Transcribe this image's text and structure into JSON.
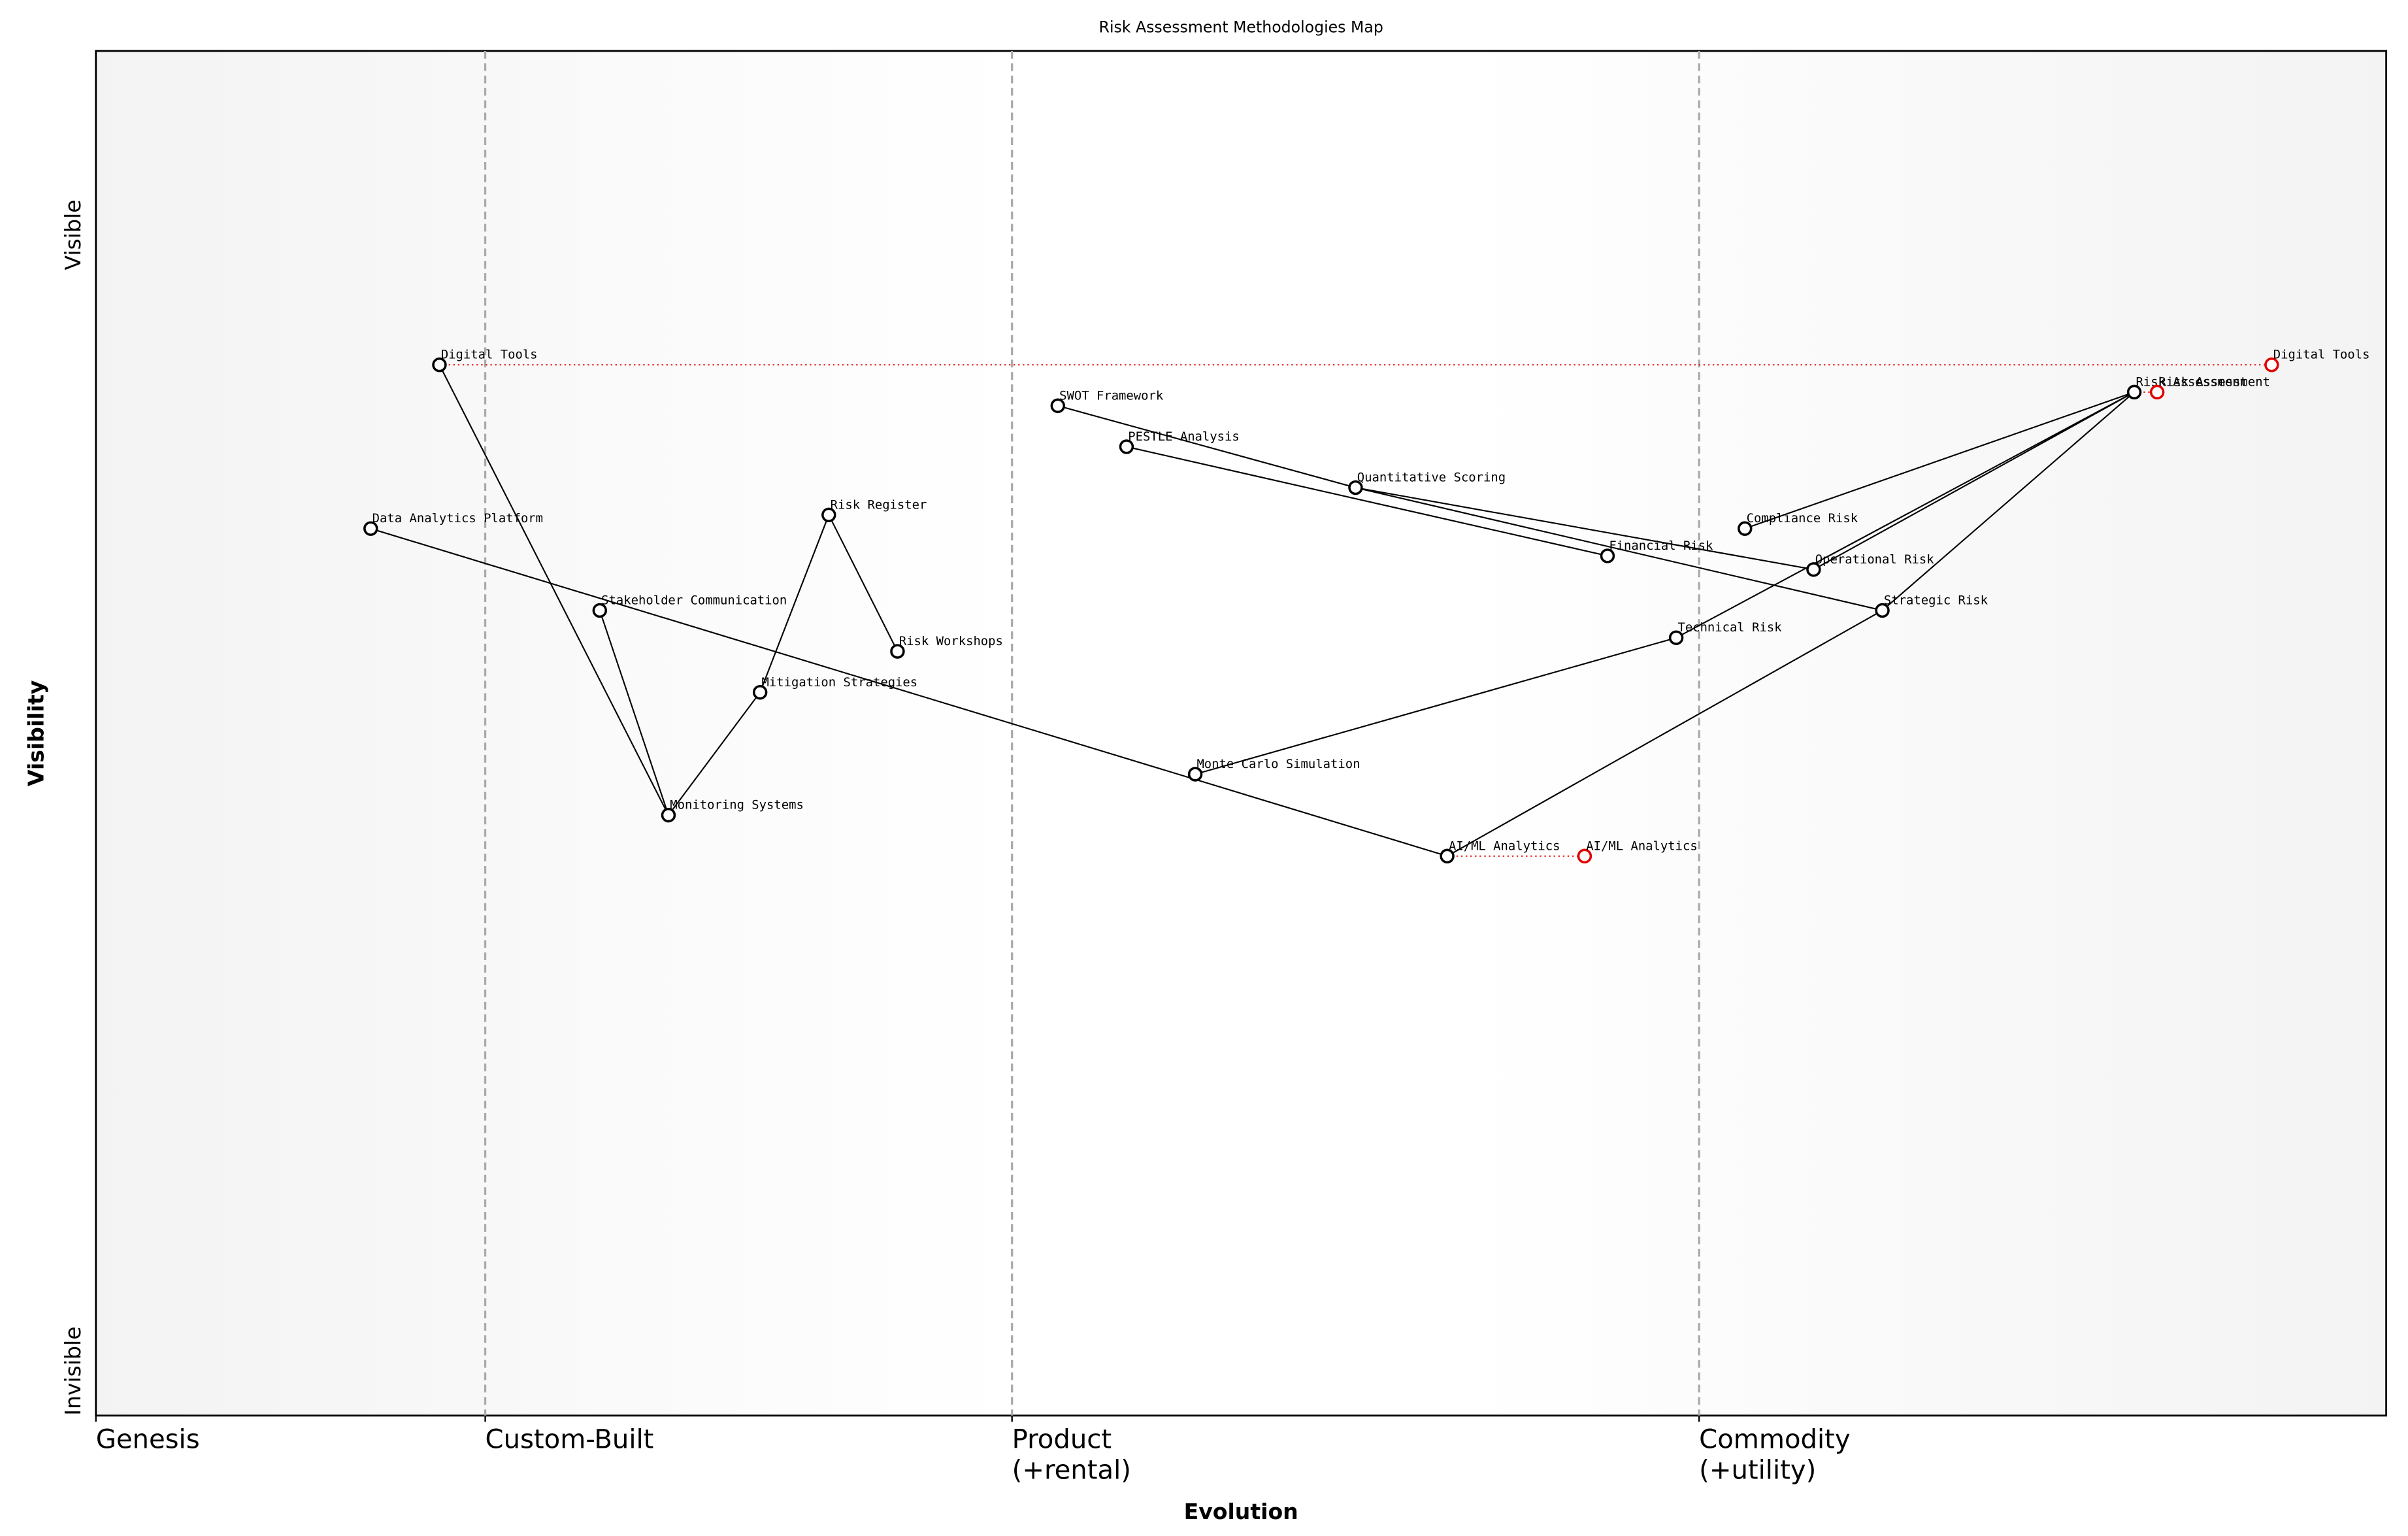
{
  "chart_data": {
    "type": "wardley",
    "title": "Risk Assessment Methodologies Map",
    "x_label": "Evolution",
    "y_label": "Visibility",
    "y_ends": [
      "Invisible",
      "Visible"
    ],
    "xlim": [
      0,
      1
    ],
    "ylim": [
      0,
      1
    ],
    "stages": [
      {
        "value": 0,
        "lines": [
          "Genesis"
        ]
      },
      {
        "value": 0.17,
        "lines": [
          "Custom-Built"
        ]
      },
      {
        "value": 0.4,
        "lines": [
          "Product",
          "(+rental)"
        ]
      },
      {
        "value": 0.7,
        "lines": [
          "Commodity",
          "(+utility)"
        ]
      }
    ],
    "components": [
      {
        "name": "Digital Tools",
        "evolution": 0.15,
        "visibility": 0.77
      },
      {
        "name": "Data Analytics Platform",
        "evolution": 0.12,
        "visibility": 0.65
      },
      {
        "name": "Stakeholder Communication",
        "evolution": 0.22,
        "visibility": 0.59
      },
      {
        "name": "Monitoring Systems",
        "evolution": 0.25,
        "visibility": 0.44
      },
      {
        "name": "Mitigation Strategies",
        "evolution": 0.29,
        "visibility": 0.53
      },
      {
        "name": "Risk Register",
        "evolution": 0.32,
        "visibility": 0.66
      },
      {
        "name": "Risk Workshops",
        "evolution": 0.35,
        "visibility": 0.56
      },
      {
        "name": "SWOT Framework",
        "evolution": 0.42,
        "visibility": 0.74
      },
      {
        "name": "PESTLE Analysis",
        "evolution": 0.45,
        "visibility": 0.71
      },
      {
        "name": "Quantitative Scoring",
        "evolution": 0.55,
        "visibility": 0.68
      },
      {
        "name": "Financial Risk",
        "evolution": 0.66,
        "visibility": 0.63
      },
      {
        "name": "Compliance Risk",
        "evolution": 0.72,
        "visibility": 0.65
      },
      {
        "name": "Operational Risk",
        "evolution": 0.75,
        "visibility": 0.62
      },
      {
        "name": "Strategic Risk",
        "evolution": 0.78,
        "visibility": 0.59
      },
      {
        "name": "Technical Risk",
        "evolution": 0.69,
        "visibility": 0.57
      },
      {
        "name": "Monte Carlo Simulation",
        "evolution": 0.48,
        "visibility": 0.47
      },
      {
        "name": "AI/ML Analytics",
        "evolution": 0.59,
        "visibility": 0.41
      },
      {
        "name": "Risk Assessment",
        "evolution": 0.89,
        "visibility": 0.75
      }
    ],
    "links": [
      [
        "Digital Tools",
        "Monitoring Systems"
      ],
      [
        "Stakeholder Communication",
        "Monitoring Systems"
      ],
      [
        "Monitoring Systems",
        "Mitigation Strategies"
      ],
      [
        "Mitigation Strategies",
        "Risk Register"
      ],
      [
        "Risk Register",
        "Risk Workshops"
      ],
      [
        "Data Analytics Platform",
        "AI/ML Analytics"
      ],
      [
        "AI/ML Analytics",
        "Strategic Risk"
      ],
      [
        "Monte Carlo Simulation",
        "Technical Risk"
      ],
      [
        "SWOT Framework",
        "Quantitative Scoring"
      ],
      [
        "Quantitative Scoring",
        "Strategic Risk"
      ],
      [
        "Quantitative Scoring",
        "Operational Risk"
      ],
      [
        "PESTLE Analysis",
        "Financial Risk"
      ],
      [
        "Risk Assessment",
        "Compliance Risk"
      ],
      [
        "Risk Assessment",
        "Operational Risk"
      ],
      [
        "Risk Assessment",
        "Technical Risk"
      ],
      [
        "Risk Assessment",
        "Strategic Risk"
      ]
    ],
    "evolved": [
      {
        "name": "Digital Tools",
        "evolution": 0.95,
        "visibility": 0.77
      },
      {
        "name": "Risk Assessment",
        "evolution": 0.9,
        "visibility": 0.75
      },
      {
        "name": "AI/ML Analytics",
        "evolution": 0.65,
        "visibility": 0.41
      }
    ],
    "evolved_color": "#e00000"
  }
}
